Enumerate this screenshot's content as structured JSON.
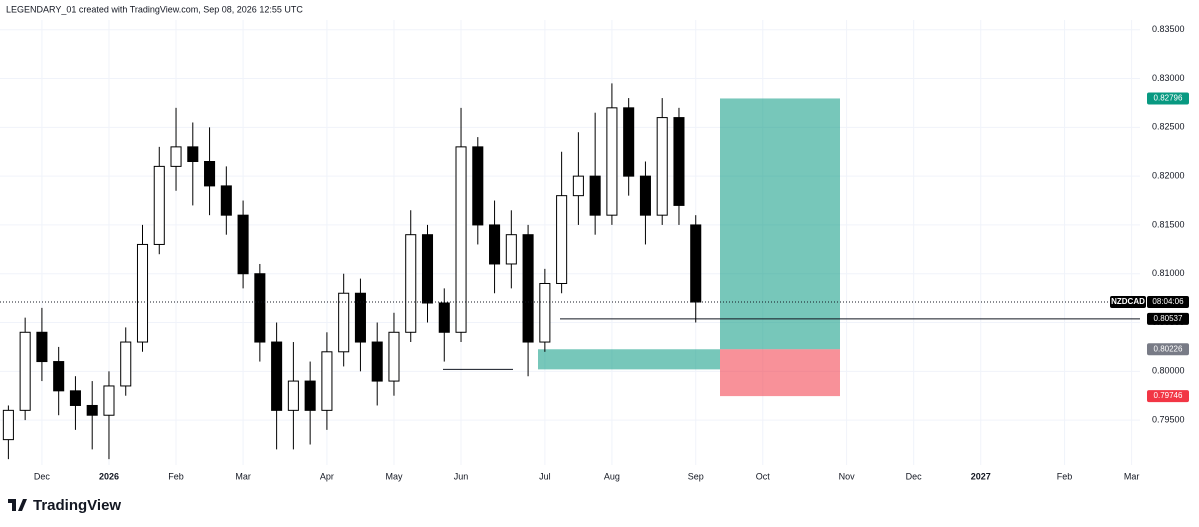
{
  "chart_data": {
    "type": "candlestick",
    "header": "LEGENDARY_01 created with TradingView.com, Sep 08, 2026 12:55 UTC",
    "brand": "TradingView",
    "symbol": "NZDCAD",
    "countdown": "08:04:06",
    "categories": [
      null,
      null,
      "Dec",
      null,
      null,
      null,
      "2026",
      null,
      null,
      null,
      "Feb",
      null,
      null,
      null,
      "Mar",
      null,
      null,
      null,
      null,
      "Apr",
      null,
      null,
      null,
      "May",
      null,
      null,
      null,
      "Jun",
      null,
      null,
      null,
      null,
      "Jul",
      null,
      null,
      null,
      "Aug",
      null,
      null,
      null,
      null,
      "Sep",
      null,
      null,
      null,
      "Oct",
      null,
      null,
      null,
      null,
      "Nov",
      null,
      null,
      null,
      "Dec",
      null,
      null,
      null,
      "2027",
      null,
      null,
      null,
      null,
      "Feb",
      null,
      null,
      null,
      "Mar"
    ],
    "open": [
      0.793,
      0.796,
      0.804,
      0.801,
      0.798,
      0.7965,
      0.7955,
      0.7985,
      0.803,
      0.813,
      0.821,
      0.823,
      0.8215,
      0.819,
      0.816,
      0.81,
      0.803,
      0.796,
      0.799,
      0.796,
      0.802,
      0.808,
      0.803,
      0.799,
      0.804,
      0.814,
      0.807,
      0.804,
      0.823,
      0.815,
      0.811,
      0.814,
      0.803,
      0.809,
      0.818,
      0.82,
      0.816,
      0.827,
      0.82,
      0.816,
      0.826,
      0.815,
      null,
      null,
      null,
      null,
      null,
      null,
      null,
      null,
      null,
      null,
      null,
      null,
      null,
      null,
      null,
      null,
      null,
      null,
      null,
      null,
      null,
      null,
      null,
      null,
      null,
      null
    ],
    "high": [
      0.7965,
      0.8055,
      0.8065,
      0.8025,
      0.7995,
      0.799,
      0.8,
      0.8045,
      0.815,
      0.823,
      0.827,
      0.8255,
      0.825,
      0.821,
      0.8175,
      0.811,
      0.805,
      0.803,
      0.801,
      0.804,
      0.81,
      0.8095,
      0.805,
      0.806,
      0.8165,
      0.815,
      0.8085,
      0.827,
      0.824,
      0.8175,
      0.8165,
      0.815,
      0.8105,
      0.8225,
      0.8245,
      0.8265,
      0.8295,
      0.828,
      0.8215,
      0.828,
      0.827,
      0.816,
      null,
      null,
      null,
      null,
      null,
      null,
      null,
      null,
      null,
      null,
      null,
      null,
      null,
      null,
      null,
      null,
      null,
      null,
      null,
      null,
      null,
      null,
      null,
      null,
      null,
      null
    ],
    "low": [
      0.791,
      0.795,
      0.799,
      0.7955,
      0.794,
      0.792,
      0.791,
      0.7975,
      0.802,
      0.812,
      0.8185,
      0.817,
      0.816,
      0.814,
      0.8085,
      0.801,
      0.792,
      0.792,
      0.7925,
      0.794,
      0.8005,
      0.8,
      0.7965,
      0.7975,
      0.803,
      0.805,
      0.801,
      0.803,
      0.813,
      0.808,
      0.8085,
      0.7995,
      0.802,
      0.808,
      0.815,
      0.814,
      0.815,
      0.818,
      0.813,
      0.815,
      0.815,
      0.805,
      null,
      null,
      null,
      null,
      null,
      null,
      null,
      null,
      null,
      null,
      null,
      null,
      null,
      null,
      null,
      null,
      null,
      null,
      null,
      null,
      null,
      null,
      null,
      null,
      null,
      null
    ],
    "close": [
      0.796,
      0.804,
      0.801,
      0.798,
      0.7965,
      0.7955,
      0.7985,
      0.803,
      0.813,
      0.821,
      0.823,
      0.8215,
      0.819,
      0.816,
      0.81,
      0.803,
      0.796,
      0.799,
      0.796,
      0.802,
      0.808,
      0.803,
      0.799,
      0.804,
      0.814,
      0.807,
      0.804,
      0.823,
      0.815,
      0.811,
      0.814,
      0.803,
      0.809,
      0.818,
      0.82,
      0.816,
      0.827,
      0.82,
      0.816,
      0.826,
      0.817,
      0.8071,
      null,
      null,
      null,
      null,
      null,
      null,
      null,
      null,
      null,
      null,
      null,
      null,
      null,
      null,
      null,
      null,
      null,
      null,
      null,
      null,
      null,
      null,
      null,
      null,
      null,
      null
    ],
    "up_color": "#ffffff",
    "down_color": "#000000",
    "ylim": [
      0.7904,
      0.836
    ],
    "yticks": [
      {
        "value": 0.795,
        "label": "0.79500"
      },
      {
        "value": 0.8,
        "label": "0.80000"
      },
      {
        "value": 0.805,
        "label": "0.80500"
      },
      {
        "value": 0.81,
        "label": "0.81000"
      },
      {
        "value": 0.815,
        "label": "0.81500"
      },
      {
        "value": 0.82,
        "label": "0.82000"
      },
      {
        "value": 0.825,
        "label": "0.82500"
      },
      {
        "value": 0.83,
        "label": "0.83000"
      },
      {
        "value": 0.835,
        "label": "0.83500"
      }
    ],
    "grid": true,
    "position": {
      "target": 0.82796,
      "entry": 0.80226,
      "stop": 0.79746,
      "target_color": "#089981",
      "entry_color": "#787b86",
      "stop_color": "#f23645"
    },
    "level_line": 0.80537,
    "zone_low": 0.8002
  }
}
